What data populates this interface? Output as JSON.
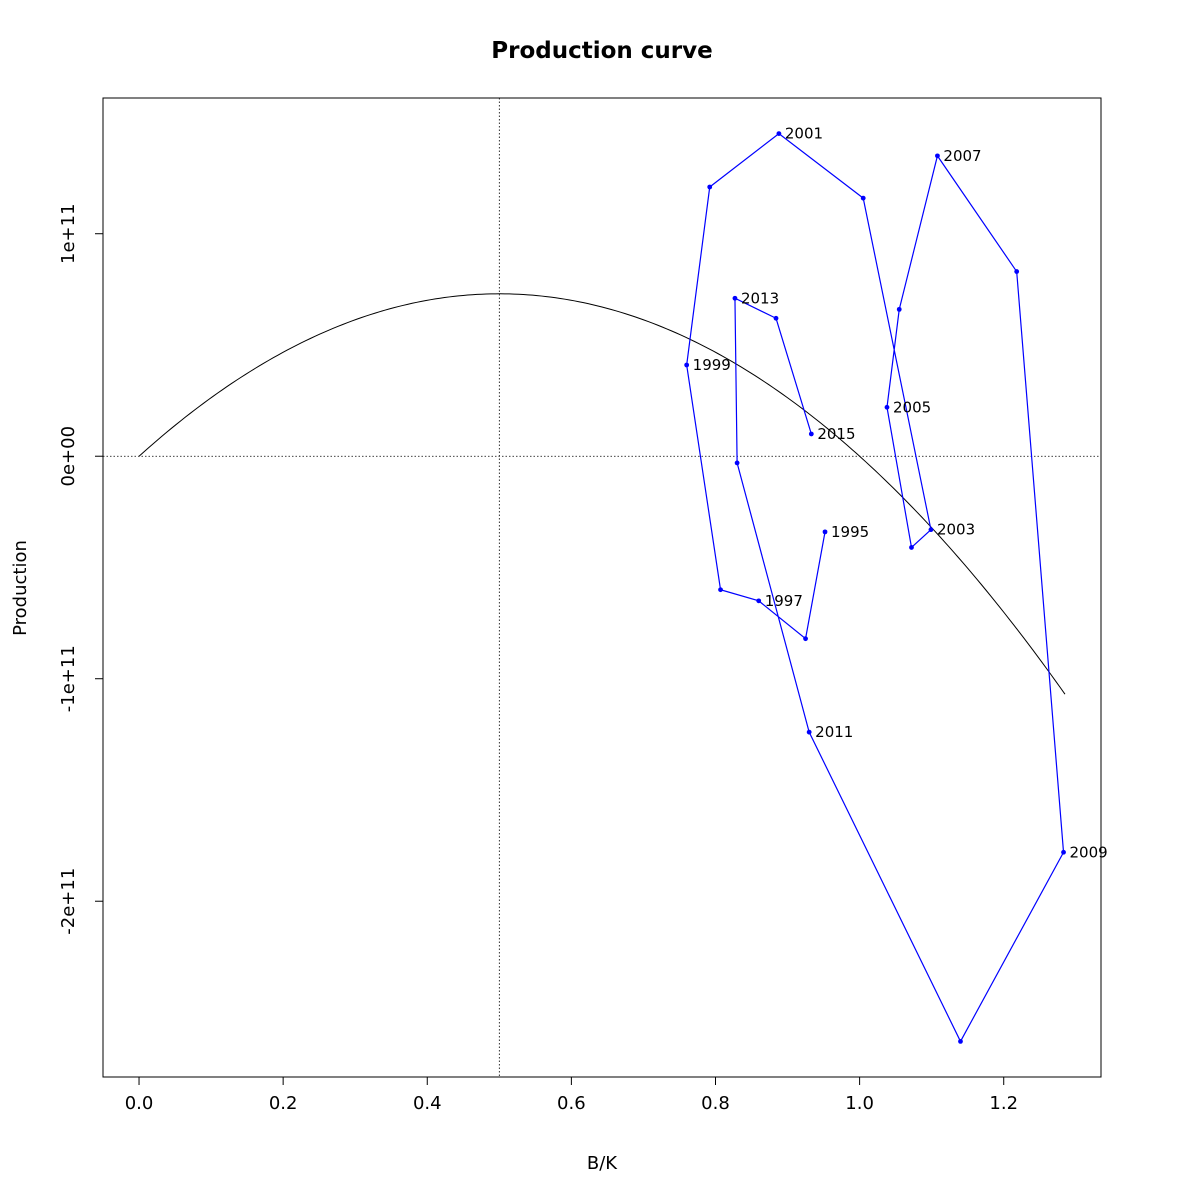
{
  "chart_data": {
    "type": "line",
    "title": "Production curve",
    "xlabel": "B/K",
    "ylabel": "Production",
    "xlim": [
      -0.05,
      1.335
    ],
    "ylim": [
      -279000000000.0,
      161000000000.0
    ],
    "x_ticks": [
      0.0,
      0.2,
      0.4,
      0.6,
      0.8,
      1.0,
      1.2
    ],
    "x_tick_labels": [
      "0.0",
      "0.2",
      "0.4",
      "0.6",
      "0.8",
      "1.0",
      "1.2"
    ],
    "y_ticks": [
      -200000000000.0,
      -100000000000.0,
      0,
      100000000000.0
    ],
    "y_tick_labels": [
      "-2e+11",
      "-1e+11",
      "0e+00",
      "1e+11"
    ],
    "grid": false,
    "reference_lines": {
      "vertical_x": 0.5,
      "horizontal_y": 0
    },
    "curve": {
      "color": "#000000",
      "formula": "4 * MSY * x * (1 - x)",
      "MSY": 73000000000.0,
      "x_range": [
        0.0,
        1.285
      ]
    },
    "series": [
      {
        "color": "#0000ff",
        "points": [
          {
            "x": 0.952,
            "y": -34000000000.0,
            "label": "1995"
          },
          {
            "x": 0.925,
            "y": -82000000000.0,
            "label": ""
          },
          {
            "x": 0.86,
            "y": -65000000000.0,
            "label": "1997"
          },
          {
            "x": 0.807,
            "y": -60000000000.0,
            "label": ""
          },
          {
            "x": 0.76,
            "y": 41000000000.0,
            "label": "1999"
          },
          {
            "x": 0.792,
            "y": 121000000000.0,
            "label": ""
          },
          {
            "x": 0.888,
            "y": 145000000000.0,
            "label": "2001"
          },
          {
            "x": 1.005,
            "y": 116000000000.0,
            "label": ""
          },
          {
            "x": 1.099,
            "y": -33000000000.0,
            "label": "2003"
          },
          {
            "x": 1.072,
            "y": -41000000000.0,
            "label": ""
          },
          {
            "x": 1.038,
            "y": 22000000000.0,
            "label": "2005"
          },
          {
            "x": 1.055,
            "y": 66000000000.0,
            "label": ""
          },
          {
            "x": 1.108,
            "y": 135000000000.0,
            "label": "2007"
          },
          {
            "x": 1.218,
            "y": 83000000000.0,
            "label": ""
          },
          {
            "x": 1.283,
            "y": -178000000000.0,
            "label": "2009"
          },
          {
            "x": 1.14,
            "y": -263000000000.0,
            "label": ""
          },
          {
            "x": 0.93,
            "y": -124000000000.0,
            "label": "2011"
          },
          {
            "x": 0.83,
            "y": -3000000000.0,
            "label": ""
          },
          {
            "x": 0.827,
            "y": 71000000000.0,
            "label": "2013"
          },
          {
            "x": 0.884,
            "y": 62000000000.0,
            "label": ""
          },
          {
            "x": 0.933,
            "y": 10000000000.0,
            "label": "2015"
          }
        ]
      }
    ]
  }
}
